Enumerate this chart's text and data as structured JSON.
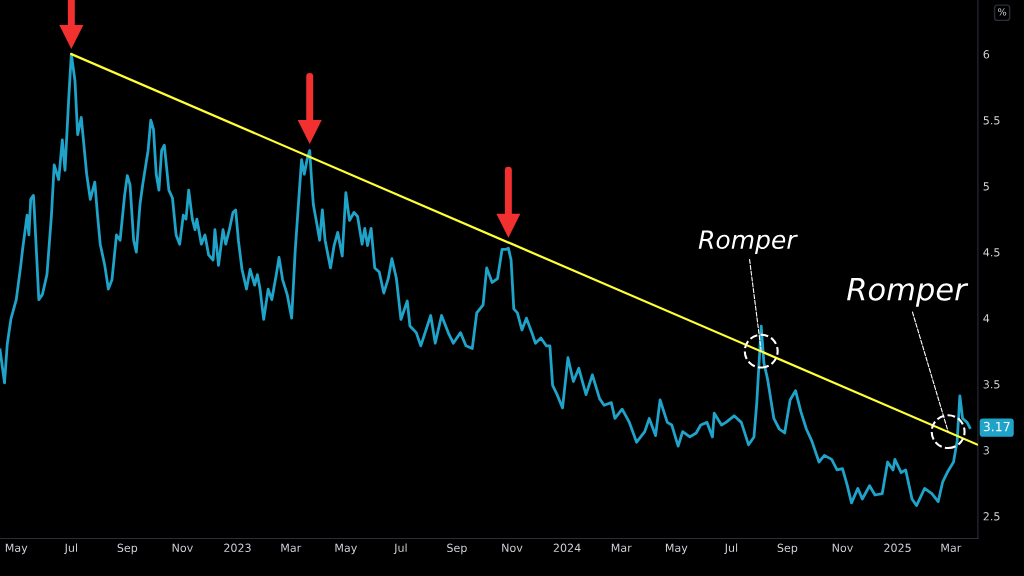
{
  "chart_data": {
    "type": "line",
    "xlim": [
      "2022-04-13",
      "2025-03-31"
    ],
    "ylim": [
      2.33,
      6.41
    ],
    "yticks": [
      2.5,
      3,
      3.5,
      4,
      4.5,
      5,
      5.5,
      6
    ],
    "xticks": [
      {
        "value": "2022-05-01",
        "label": "May"
      },
      {
        "value": "2022-07-01",
        "label": "Jul"
      },
      {
        "value": "2022-09-01",
        "label": "Sep"
      },
      {
        "value": "2022-11-01",
        "label": "Nov"
      },
      {
        "value": "2023-01-01",
        "label": "2023"
      },
      {
        "value": "2023-03-01",
        "label": "Mar"
      },
      {
        "value": "2023-05-01",
        "label": "May"
      },
      {
        "value": "2023-07-01",
        "label": "Jul"
      },
      {
        "value": "2023-09-01",
        "label": "Sep"
      },
      {
        "value": "2023-11-01",
        "label": "Nov"
      },
      {
        "value": "2024-01-01",
        "label": "2024"
      },
      {
        "value": "2024-03-01",
        "label": "Mar"
      },
      {
        "value": "2024-05-01",
        "label": "May"
      },
      {
        "value": "2024-07-01",
        "label": "Jul"
      },
      {
        "value": "2024-09-01",
        "label": "Sep"
      },
      {
        "value": "2024-11-01",
        "label": "Nov"
      },
      {
        "value": "2025-01-01",
        "label": "2025"
      },
      {
        "value": "2025-03-01",
        "label": "Mar"
      }
    ],
    "grid": false,
    "series": [
      {
        "color": "#1fa3c9",
        "x": [
          "2022-04-13",
          "2022-04-18",
          "2022-04-21",
          "2022-04-25",
          "2022-05-01",
          "2022-05-06",
          "2022-05-08",
          "2022-05-13",
          "2022-05-15",
          "2022-05-17",
          "2022-05-20",
          "2022-05-21",
          "2022-05-26",
          "2022-05-30",
          "2022-06-04",
          "2022-06-09",
          "2022-06-12",
          "2022-06-17",
          "2022-06-21",
          "2022-06-24",
          "2022-06-28",
          "2022-07-01",
          "2022-07-05",
          "2022-07-08",
          "2022-07-12",
          "2022-07-18",
          "2022-07-22",
          "2022-07-27",
          "2022-07-30",
          "2022-08-02",
          "2022-08-07",
          "2022-08-11",
          "2022-08-15",
          "2022-08-20",
          "2022-08-24",
          "2022-08-29",
          "2022-09-01",
          "2022-09-04",
          "2022-09-08",
          "2022-09-11",
          "2022-09-15",
          "2022-09-18",
          "2022-09-24",
          "2022-09-27",
          "2022-09-30",
          "2022-10-03",
          "2022-10-06",
          "2022-10-09",
          "2022-10-12",
          "2022-10-17",
          "2022-10-21",
          "2022-10-25",
          "2022-10-29",
          "2022-11-02",
          "2022-11-05",
          "2022-11-08",
          "2022-11-12",
          "2022-11-15",
          "2022-11-17",
          "2022-11-22",
          "2022-11-26",
          "2022-11-30",
          "2022-12-05",
          "2022-12-07",
          "2022-12-11",
          "2022-12-16",
          "2022-12-19",
          "2022-12-23",
          "2022-12-27",
          "2022-12-30",
          "2023-01-02",
          "2023-01-06",
          "2023-01-11",
          "2023-01-15",
          "2023-01-20",
          "2023-01-23",
          "2023-01-26",
          "2023-01-30",
          "2023-02-04",
          "2023-02-08",
          "2023-02-13",
          "2023-02-16",
          "2023-02-20",
          "2023-02-25",
          "2023-03-02",
          "2023-03-06",
          "2023-03-11",
          "2023-03-13",
          "2023-03-16",
          "2023-03-19",
          "2023-03-22",
          "2023-03-24",
          "2023-03-26",
          "2023-03-30",
          "2023-04-02",
          "2023-04-05",
          "2023-04-08",
          "2023-04-14",
          "2023-04-18",
          "2023-04-22",
          "2023-04-27",
          "2023-05-01",
          "2023-05-05",
          "2023-05-10",
          "2023-05-14",
          "2023-05-19",
          "2023-05-22",
          "2023-05-25",
          "2023-05-29",
          "2023-06-02",
          "2023-06-07",
          "2023-06-12",
          "2023-06-17",
          "2023-06-21",
          "2023-06-26",
          "2023-07-01",
          "2023-07-08",
          "2023-07-11",
          "2023-07-18",
          "2023-07-23",
          "2023-08-03",
          "2023-08-08",
          "2023-08-15",
          "2023-08-23",
          "2023-08-28",
          "2023-09-05",
          "2023-09-11",
          "2023-09-18",
          "2023-09-23",
          "2023-09-30",
          "2023-10-04",
          "2023-10-10",
          "2023-10-16",
          "2023-10-21",
          "2023-10-25",
          "2023-10-28",
          "2023-10-31",
          "2023-11-03",
          "2023-11-07",
          "2023-11-12",
          "2023-11-17",
          "2023-11-23",
          "2023-11-27",
          "2023-12-03",
          "2023-12-09",
          "2023-12-13",
          "2023-12-16",
          "2023-12-21",
          "2023-12-27",
          "2024-01-02",
          "2024-01-08",
          "2024-01-14",
          "2024-01-22",
          "2024-01-29",
          "2024-02-06",
          "2024-02-11",
          "2024-02-19",
          "2024-02-23",
          "2024-03-02",
          "2024-03-10",
          "2024-03-18",
          "2024-03-27",
          "2024-04-01",
          "2024-04-08",
          "2024-04-13",
          "2024-04-21",
          "2024-04-26",
          "2024-05-03",
          "2024-05-08",
          "2024-05-16",
          "2024-05-23",
          "2024-05-28",
          "2024-06-04",
          "2024-06-10",
          "2024-06-12",
          "2024-06-20",
          "2024-06-25",
          "2024-07-04",
          "2024-07-12",
          "2024-07-20",
          "2024-07-26",
          "2024-07-29",
          "2024-08-03",
          "2024-08-06",
          "2024-08-10",
          "2024-08-17",
          "2024-08-23",
          "2024-08-29",
          "2024-09-04",
          "2024-09-10",
          "2024-09-16",
          "2024-09-22",
          "2024-09-28",
          "2024-10-06",
          "2024-10-12",
          "2024-10-20",
          "2024-10-26",
          "2024-11-01",
          "2024-11-06",
          "2024-11-11",
          "2024-11-18",
          "2024-11-23",
          "2024-12-01",
          "2024-12-07",
          "2024-12-15",
          "2024-12-21",
          "2024-12-27",
          "2024-12-29",
          "2025-01-05",
          "2025-01-10",
          "2025-01-17",
          "2025-01-22",
          "2025-01-31",
          "2025-02-08",
          "2025-02-15",
          "2025-02-20",
          "2025-02-25",
          "2025-03-04",
          "2025-03-08",
          "2025-03-11",
          "2025-03-14",
          "2025-03-19",
          "2025-03-22"
        ],
        "values": [
          3.76,
          3.51,
          3.8,
          3.99,
          4.14,
          4.4,
          4.52,
          4.78,
          4.63,
          4.9,
          4.93,
          4.82,
          4.14,
          4.18,
          4.33,
          4.78,
          5.16,
          5.05,
          5.35,
          5.12,
          5.65,
          6.0,
          5.8,
          5.39,
          5.52,
          5.09,
          4.9,
          5.03,
          4.78,
          4.56,
          4.4,
          4.22,
          4.29,
          4.63,
          4.59,
          4.93,
          5.08,
          5.01,
          4.59,
          4.5,
          4.86,
          5.01,
          5.27,
          5.5,
          5.43,
          5.09,
          4.97,
          5.27,
          5.31,
          4.97,
          4.91,
          4.63,
          4.56,
          4.78,
          4.75,
          4.97,
          4.75,
          4.67,
          4.75,
          4.56,
          4.63,
          4.48,
          4.44,
          4.67,
          4.4,
          4.67,
          4.56,
          4.67,
          4.8,
          4.82,
          4.59,
          4.37,
          4.22,
          4.37,
          4.25,
          4.33,
          4.22,
          3.99,
          4.22,
          4.14,
          4.33,
          4.46,
          4.29,
          4.18,
          4.0,
          4.52,
          5.01,
          5.2,
          5.09,
          5.2,
          5.27,
          5.05,
          4.86,
          4.71,
          4.59,
          4.82,
          4.59,
          4.38,
          4.55,
          4.65,
          4.47,
          4.95,
          4.74,
          4.8,
          4.77,
          4.56,
          4.68,
          4.55,
          4.68,
          4.38,
          4.35,
          4.19,
          4.3,
          4.45,
          4.3,
          3.99,
          4.13,
          3.94,
          3.89,
          3.79,
          4.02,
          3.81,
          4.02,
          3.88,
          3.81,
          3.89,
          3.79,
          3.77,
          4.04,
          4.1,
          4.38,
          4.27,
          4.3,
          4.52,
          4.52,
          4.53,
          4.44,
          4.07,
          4.04,
          3.91,
          4.0,
          3.89,
          3.81,
          3.85,
          3.79,
          3.79,
          3.49,
          3.42,
          3.32,
          3.7,
          3.52,
          3.62,
          3.42,
          3.57,
          3.39,
          3.34,
          3.36,
          3.24,
          3.31,
          3.21,
          3.06,
          3.14,
          3.24,
          3.11,
          3.38,
          3.21,
          3.19,
          3.03,
          3.14,
          3.1,
          3.13,
          3.19,
          3.21,
          3.1,
          3.28,
          3.19,
          3.21,
          3.26,
          3.21,
          3.04,
          3.1,
          3.35,
          3.94,
          3.66,
          3.54,
          3.24,
          3.16,
          3.13,
          3.38,
          3.45,
          3.29,
          3.16,
          3.07,
          2.91,
          2.96,
          2.93,
          2.85,
          2.86,
          2.74,
          2.6,
          2.71,
          2.63,
          2.73,
          2.66,
          2.67,
          2.91,
          2.85,
          2.93,
          2.83,
          2.85,
          2.63,
          2.58,
          2.71,
          2.67,
          2.61,
          2.76,
          2.83,
          2.91,
          3.07,
          3.41,
          3.24,
          3.21,
          3.17
        ],
        "value_labels": [
          null,
          null,
          null,
          null,
          null,
          null,
          null,
          null,
          null,
          null,
          null,
          null,
          null,
          null,
          null,
          null,
          null,
          null,
          null,
          null,
          null,
          null,
          null,
          null,
          null,
          null,
          null,
          null,
          null,
          null,
          null,
          null,
          null,
          null,
          null,
          null,
          null,
          null,
          null,
          null,
          null,
          null,
          null,
          null,
          null,
          null,
          null,
          null,
          null,
          null,
          null,
          null,
          null,
          null,
          null,
          null,
          null,
          null,
          null,
          null,
          null,
          null,
          null,
          null,
          null,
          null,
          null,
          null,
          null,
          null,
          null,
          null,
          null,
          null,
          null,
          null,
          null,
          null,
          null,
          null,
          null,
          null,
          null,
          null,
          null,
          null,
          null,
          null,
          null,
          null,
          null,
          null,
          null,
          null,
          null,
          null,
          null,
          null,
          null,
          null,
          null,
          null,
          null,
          null,
          null,
          null,
          null,
          null,
          null,
          null,
          null,
          null,
          null,
          null,
          null,
          null,
          null,
          null,
          null,
          null,
          null,
          null,
          null,
          null,
          null,
          null,
          null,
          null,
          null,
          null,
          null,
          null,
          null,
          null,
          null,
          null,
          null,
          null,
          null,
          null,
          null,
          null,
          null,
          null,
          null,
          null,
          null,
          null,
          null,
          null,
          null,
          null,
          null,
          null,
          null,
          null,
          null,
          null,
          null,
          null,
          null,
          null,
          null,
          null,
          null,
          null,
          null,
          null,
          null,
          null,
          null,
          null,
          null,
          null,
          null,
          null,
          null,
          null,
          null,
          null,
          null,
          null,
          null,
          null,
          null,
          null,
          null,
          null,
          null,
          null,
          null,
          null,
          null,
          null,
          null,
          null,
          null,
          null,
          null,
          null,
          null,
          null,
          null,
          null,
          null,
          null,
          null,
          null,
          null,
          null,
          null,
          null,
          null,
          null,
          null,
          null,
          null,
          null,
          null,
          null,
          null,
          null,
          "3.17"
        ]
      },
      {
        "type": "line",
        "color": "#ffff33",
        "x": [
          "2022-07-01",
          "2025-03-31"
        ],
        "values": [
          6.0,
          3.04
        ]
      },
      {
        "type": "scatter",
        "marker": "triangle",
        "color": "#f23030",
        "x": [
          "2022-07-01",
          "2023-03-22",
          "2023-10-28"
        ],
        "values": [
          6.13,
          5.41,
          4.7
        ]
      }
    ],
    "annotations": [
      "%",
      {
        "text": "Romper",
        "x": "2024-08-03",
        "y": 3.75
      },
      {
        "text": "Romper",
        "x": "2025-02-26",
        "y": 3.14
      }
    ]
  }
}
